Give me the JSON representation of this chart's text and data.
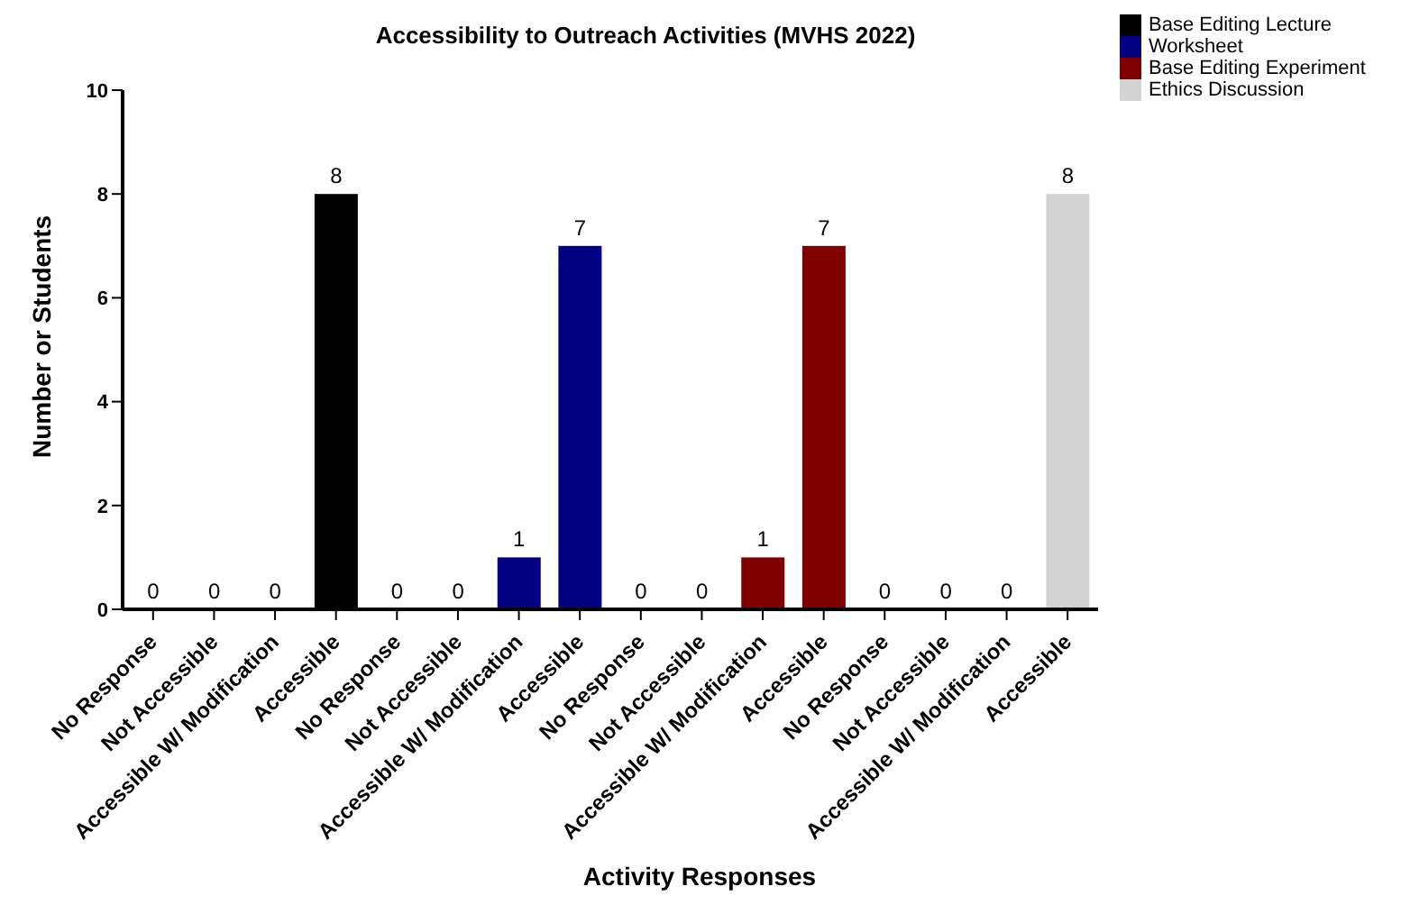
{
  "chart_data": {
    "type": "bar",
    "title": "Accessibility to Outreach Activities (MVHS 2022)",
    "xlabel": "Activity Responses",
    "ylabel": "Number or Students",
    "categories": [
      "No Response",
      "Not Accessible",
      "Accessible W/ Modification",
      "Accessible",
      "No Response",
      "Not Accessible",
      "Accessible W/ Modification",
      "Accessible",
      "No Response",
      "Not Accessible",
      "Accessible W/ Modification",
      "Accessible",
      "No Response",
      "Not Accessible",
      "Accessible W/ Modification",
      "Accessible"
    ],
    "series": [
      {
        "name": "Base Editing Lecture",
        "color": "#000000",
        "values": [
          0,
          0,
          0,
          8,
          null,
          null,
          null,
          null,
          null,
          null,
          null,
          null,
          null,
          null,
          null,
          null
        ]
      },
      {
        "name": "Worksheet",
        "color": "#000080",
        "values": [
          null,
          null,
          null,
          null,
          0,
          0,
          1,
          7,
          null,
          null,
          null,
          null,
          null,
          null,
          null,
          null
        ]
      },
      {
        "name": "Base Editing Experiment",
        "color": "#800000",
        "values": [
          null,
          null,
          null,
          null,
          null,
          null,
          null,
          null,
          0,
          0,
          1,
          7,
          null,
          null,
          null,
          null
        ]
      },
      {
        "name": "Ethics Discussion",
        "color": "#d3d3d3",
        "values": [
          null,
          null,
          null,
          null,
          null,
          null,
          null,
          null,
          null,
          null,
          null,
          null,
          0,
          0,
          0,
          8
        ]
      }
    ],
    "ylim": [
      0,
      10
    ],
    "yticks": [
      0,
      2,
      4,
      6,
      8,
      10
    ],
    "data_labels": true,
    "legend": "top right",
    "grid": false
  }
}
